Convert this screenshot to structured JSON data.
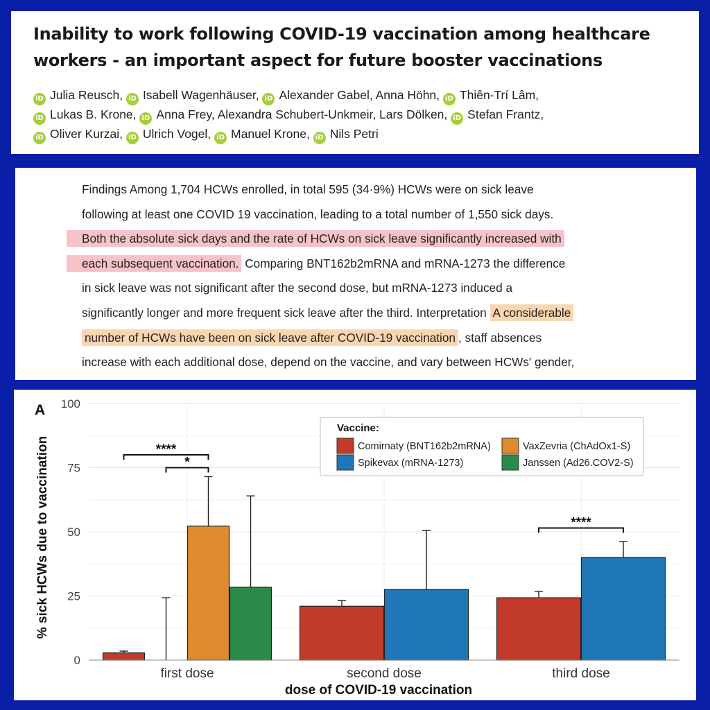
{
  "paper": {
    "title": "Inability to work following COVID-19 vaccination among healthcare workers - an important aspect for future booster vaccinations",
    "author_lines": [
      [
        {
          "name": "Julia Reusch,",
          "orcid": true
        },
        {
          "name": "Isabell Wagenhäuser,",
          "orcid": true
        },
        {
          "name": "Alexander Gabel, Anna Höhn,",
          "orcid": true
        },
        {
          "name": "Thiên-Trí Lâm,",
          "orcid": true
        }
      ],
      [
        {
          "name": "Lukas B. Krone,",
          "orcid": true
        },
        {
          "name": "Anna Frey, Alexandra Schubert-Unkmeir, Lars Dölken,",
          "orcid": true
        },
        {
          "name": "Stefan Frantz,",
          "orcid": true
        }
      ],
      [
        {
          "name": "Oliver Kurzai,",
          "orcid": true
        },
        {
          "name": "Ulrich Vogel,",
          "orcid": true
        },
        {
          "name": "Manuel Krone,",
          "orcid": true
        },
        {
          "name": "Nils Petri",
          "orcid": true
        }
      ]
    ],
    "orcid_badge": "iD"
  },
  "abstract": {
    "lines": [
      [
        {
          "text": "Findings Among 1,704 HCWs enrolled, in total 595 (34·9%) HCWs were on sick leave",
          "hl": ""
        }
      ],
      [
        {
          "text": "following at least one COVID 19 vaccination, leading to a total number of 1,550 sick days.",
          "hl": ""
        }
      ],
      [
        {
          "text": "Both the absolute sick days and the rate of HCWs on sick leave significantly increased with",
          "hl": "pink"
        }
      ],
      [
        {
          "text": "each subsequent vaccination.",
          "hl": "pink"
        },
        {
          "text": " Comparing BNT162b2mRNA and mRNA-1273 the difference",
          "hl": ""
        }
      ],
      [
        {
          "text": "in sick leave was not significant after the second dose, but mRNA-1273 induced a",
          "hl": ""
        }
      ],
      [
        {
          "text": "significantly longer and more frequent sick leave after the third. Interpretation ",
          "hl": ""
        },
        {
          "text": "A considerable",
          "hl": "orange"
        }
      ],
      [
        {
          "text": "number of HCWs have been on sick leave after COVID-19 vaccination",
          "hl": "orange"
        },
        {
          "text": ", staff absences",
          "hl": ""
        }
      ],
      [
        {
          "text": "increase with each additional dose, depend on the vaccine, and vary between HCWs' gender,",
          "hl": ""
        }
      ]
    ],
    "highlight_colors": {
      "pink": "#f6c3c9",
      "orange": "#fad6b0"
    }
  },
  "chart_data": {
    "type": "bar",
    "panel_label": "A",
    "xlabel": "dose of COVID-19 vaccination",
    "ylabel": "% sick HCWs due to vaccination",
    "ylim": [
      0,
      100
    ],
    "yticks": [
      0,
      25,
      50,
      75,
      100
    ],
    "categories": [
      "first dose",
      "second dose",
      "third dose"
    ],
    "legend": {
      "title": "Vaccine:",
      "placement": "top-right",
      "entries": [
        {
          "name": "Comirnaty (BNT162b2mRNA)",
          "color": "#c23b2a"
        },
        {
          "name": "VaxZevria (ChAdOx1-S)",
          "color": "#e08a2e"
        },
        {
          "name": "Spikevax (mRNA-1273)",
          "color": "#1f77b9"
        },
        {
          "name": "Janssen (Ad26.COV2-S)",
          "color": "#2a8a4a"
        }
      ]
    },
    "groups": [
      {
        "category": "first dose",
        "bars": [
          {
            "series": "Comirnaty (BNT162b2mRNA)",
            "value": 2.8,
            "err": 3.5
          },
          {
            "series": "Spikevax (mRNA-1273)",
            "value": 0,
            "err": 24.3
          },
          {
            "series": "VaxZevria (ChAdOx1-S)",
            "value": 52.2,
            "err": 71.5
          },
          {
            "series": "Janssen (Ad26.COV2-S)",
            "value": 28.4,
            "err": 64
          }
        ]
      },
      {
        "category": "second dose",
        "bars": [
          {
            "series": "Comirnaty (BNT162b2mRNA)",
            "value": 21,
            "err": 23.2
          },
          {
            "series": "Spikevax (mRNA-1273)",
            "value": 27.5,
            "err": 50.5
          }
        ]
      },
      {
        "category": "third dose",
        "bars": [
          {
            "series": "Comirnaty (BNT162b2mRNA)",
            "value": 24.3,
            "err": 26.8
          },
          {
            "series": "Spikevax (mRNA-1273)",
            "value": 40,
            "err": 46.2
          }
        ]
      }
    ],
    "significance": [
      {
        "label": "****",
        "group": 0,
        "from": 0,
        "to": 2,
        "y": 80
      },
      {
        "label": "*",
        "group": 0,
        "from": 1,
        "to": 2,
        "y": 75
      },
      {
        "label": "****",
        "group": 2,
        "from": 0,
        "to": 1,
        "y": 51.5
      }
    ],
    "grid": true
  }
}
